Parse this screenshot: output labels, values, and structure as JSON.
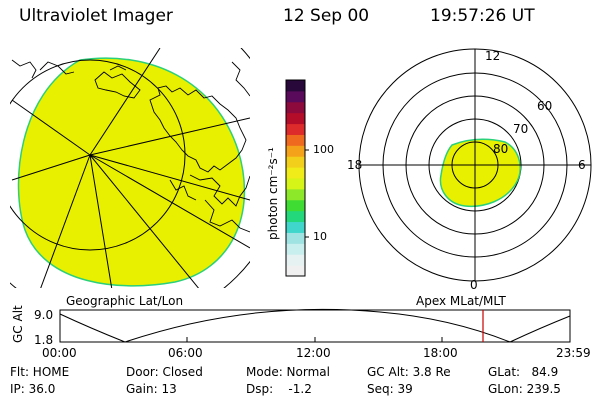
{
  "header": {
    "instrument": "Ultraviolet Imager",
    "date": "12 Sep 00",
    "time": "19:57:26 UT"
  },
  "colorbar": {
    "unit_label": "photon cm⁻²s⁻¹",
    "tick_100": "100",
    "tick_10": "10",
    "colors": [
      "#f0f0f0",
      "#e6f2f2",
      "#c9eeee",
      "#9fe3e3",
      "#40d6cc",
      "#22d87a",
      "#3fdc33",
      "#8ee82a",
      "#d6f417",
      "#f0ec1a",
      "#f2cf1a",
      "#f4a21a",
      "#ef6a1f",
      "#dd2a2a",
      "#b40d2a",
      "#8c0a3c",
      "#5a0a5a",
      "#28083a"
    ]
  },
  "geo_panel": {
    "fill_color": "#e8f000",
    "label": "Geographic Lat/Lon"
  },
  "polar_panel": {
    "label": "Apex MLat/MLT",
    "mlt_12": "12",
    "mlt_18": "18",
    "mlt_6": "6",
    "mlt_0": "0",
    "lat_60": "60",
    "lat_70": "70",
    "lat_80": "80",
    "fill_color": "#e8f000"
  },
  "orbit_plot": {
    "ylabel": "GC Alt",
    "y_max": "9.0",
    "y_min": "1.8",
    "x_ticks": [
      "00:00",
      "06:00",
      "12:00",
      "18:00",
      "23:59"
    ],
    "marker_color": "#cc0000"
  },
  "status": {
    "flt": "Flt: HOME",
    "ip": "IP: 36.0",
    "door": "Door: Closed",
    "gain": "Gain: 13",
    "mode": "Mode: Normal",
    "dsp": "Dsp:    -1.2",
    "gcalt": "GC Alt: 3.8 Re",
    "seq": "Seq: 39",
    "glat": "GLat:   84.9",
    "glon": "GLon: 239.5"
  }
}
